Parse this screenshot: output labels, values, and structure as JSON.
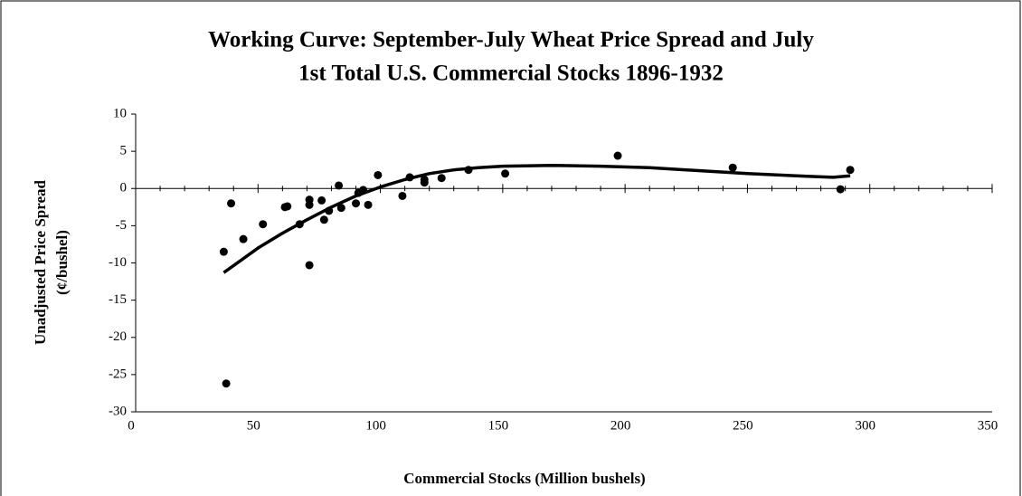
{
  "chart_data": {
    "type": "scatter",
    "title": [
      "Working Curve:  September-July Wheat Price Spread and July",
      "1st Total U.S. Commercial Stocks 1896-1932"
    ],
    "x_label": "Commercial Stocks (Million bushels)",
    "y_label": [
      "Unadjusted Price Spread",
      "(¢/bushel)"
    ],
    "color": "#000000",
    "x": [
      36,
      37,
      39,
      44,
      52,
      61,
      62,
      67,
      71,
      71,
      71,
      76,
      77,
      79,
      83,
      84,
      90,
      91,
      93,
      95,
      99,
      109,
      112,
      118,
      118,
      125,
      136,
      151,
      197,
      244,
      288,
      292
    ],
    "values": [
      -8.5,
      -26.2,
      -2,
      -6.8,
      -4.8,
      -2.5,
      -2.4,
      -4.8,
      -1.5,
      -2.2,
      -10.3,
      -1.6,
      -4.2,
      -3,
      0.4,
      -2.6,
      -2,
      -0.6,
      -0.2,
      -2.2,
      1.8,
      -1,
      1.5,
      1.2,
      0.8,
      1.4,
      2.5,
      2,
      4.4,
      2.8,
      -0.1,
      2.5
    ],
    "curve": {
      "x": [
        36,
        50,
        60,
        70,
        80,
        90,
        100,
        110,
        120,
        130,
        140,
        150,
        170,
        190,
        210,
        230,
        250,
        270,
        285,
        292
      ],
      "y": [
        -11.3,
        -8,
        -6,
        -4.2,
        -2.5,
        -1,
        0.2,
        1.2,
        2,
        2.5,
        2.8,
        3,
        3.1,
        3,
        2.8,
        2.4,
        2,
        1.7,
        1.5,
        1.7
      ]
    },
    "xlim": [
      0,
      350
    ],
    "ylim": [
      -30,
      10
    ],
    "xticks": [
      0,
      50,
      100,
      150,
      200,
      250,
      300,
      350
    ],
    "yticks": [
      -30,
      -25,
      -20,
      -15,
      -10,
      -5,
      0,
      5,
      10
    ]
  }
}
